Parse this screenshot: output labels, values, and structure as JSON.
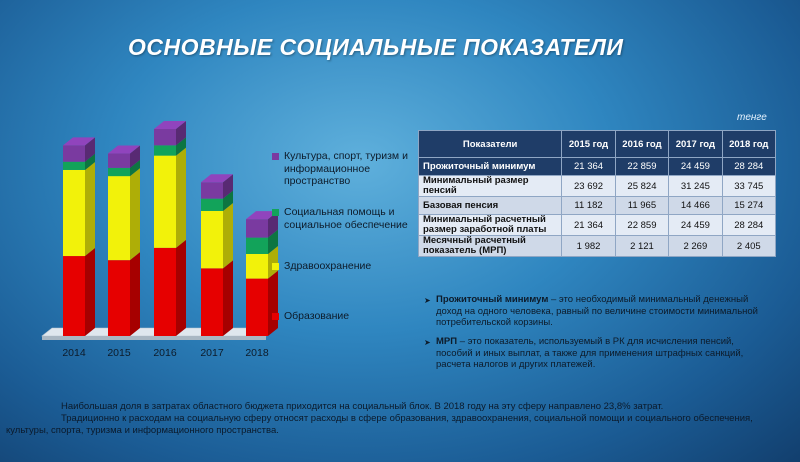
{
  "title": "ОСНОВНЫЕ СОЦИАЛЬНЫЕ ПОКАЗАТЕЛИ",
  "colors": {
    "education": "#e60000",
    "health": "#f2f20a",
    "social": "#12a35a",
    "culture": "#7a3aa0",
    "table_header": "#1f3d68"
  },
  "chart_data": {
    "type": "bar",
    "stacked": true,
    "three_d": true,
    "categories": [
      "2014",
      "2015",
      "2016",
      "2017",
      "2018"
    ],
    "ylim": [
      0,
      100
    ],
    "grid": false,
    "legend_position": "right",
    "series": [
      {
        "name": "Образование",
        "color": "#e60000",
        "values": [
          39,
          37,
          43,
          33,
          28
        ]
      },
      {
        "name": "Здравоохранение",
        "color": "#f2f20a",
        "values": [
          42,
          41,
          45,
          28,
          12
        ]
      },
      {
        "name": "Социальная помощь и социальное обеспечение",
        "color": "#12a35a",
        "values": [
          4,
          4,
          5,
          6,
          8
        ]
      },
      {
        "name": "Культура, спорт, туризм и информационное пространство",
        "color": "#7a3aa0",
        "values": [
          8,
          7,
          8,
          8,
          9
        ]
      }
    ]
  },
  "legend": {
    "items": [
      {
        "label": "Культура, спорт, туризм и информационное пространство",
        "color": "#7a3aa0"
      },
      {
        "label": "Социальная помощь и социальное обеспечение",
        "color": "#12a35a"
      },
      {
        "label": "Здравоохранение",
        "color": "#f2f20a"
      },
      {
        "label": "Образование",
        "color": "#e60000"
      }
    ]
  },
  "table": {
    "unit": "тенге",
    "headers": [
      "Показатели",
      "2015 год",
      "2016 год",
      "2017 год",
      "2018 год"
    ],
    "rows": [
      {
        "label": "Прожиточный минимум",
        "values": [
          "21 364",
          "22 859",
          "24 459",
          "28 284"
        ]
      },
      {
        "label": "Минимальный размер пенсий",
        "values": [
          "23 692",
          "25 824",
          "31 245",
          "33 745"
        ]
      },
      {
        "label": "Базовая пенсия",
        "values": [
          "11 182",
          "11 965",
          "14 466",
          "15 274"
        ]
      },
      {
        "label": "Минимальный расчетный размер заработной платы",
        "values": [
          "21 364",
          "22 859",
          "24 459",
          "28 284"
        ]
      },
      {
        "label": "Месячный расчетный показатель (МРП)",
        "values": [
          "1 982",
          "2 121",
          "2 269",
          "2 405"
        ]
      }
    ]
  },
  "definitions": [
    {
      "term": "Прожиточный минимум",
      "text": " – это необходимый минимальный денежный доход на одного человека, равный по величине стоимости минимальной потребительской корзины."
    },
    {
      "term": "МРП",
      "text": " – это показатель, используемый в РК для исчисления пенсий, пособий и иных выплат, а также для применения штрафных санкций, расчета налогов и других платежей."
    }
  ],
  "footer": {
    "line1": "Наибольшая доля в затратах областного бюджета приходится на социальный блок. В 2018 году на эту сферу направлено 23,8% затрат.",
    "line2": "Традиционно к расходам на социальную сферу относят расходы в сфере образования, здравоохранения, социальной помощи и социального обеспечения, культуры, спорта, туризма и информационного пространства."
  }
}
